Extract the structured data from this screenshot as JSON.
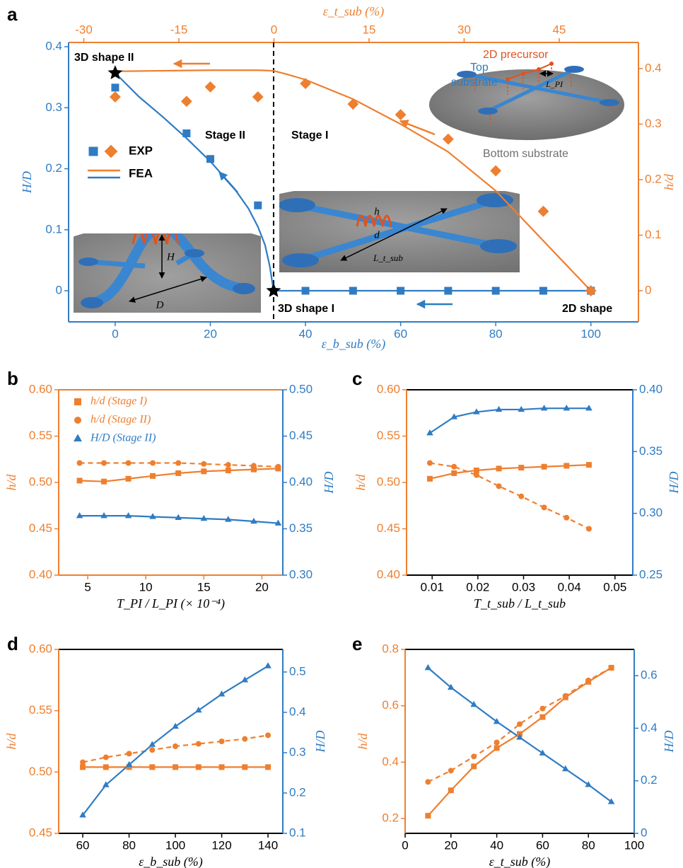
{
  "chart_data": [
    {
      "label": "a",
      "type": "line",
      "xlim": [
        -9.8,
        110
      ],
      "xticks": [
        0,
        20,
        40,
        60,
        80,
        100
      ],
      "x2lim": [
        -32.4,
        57.5
      ],
      "x2ticks": [
        -30,
        -15,
        0,
        15,
        30,
        45
      ],
      "ylim": [
        -0.051,
        0.407
      ],
      "yticks": [
        0,
        0.1,
        0.2,
        0.3,
        0.4
      ],
      "y2lim": [
        -0.056,
        0.447
      ],
      "y2ticks": [
        0,
        0.1,
        0.2,
        0.3,
        0.4
      ],
      "xlabel": "ε_b_sub (%)",
      "x2label": "ε_t_sub (%)",
      "ylabel": "H/D",
      "y2label": "h/d",
      "xcolor": "#2f7cc3",
      "topcolor": "#ee7f2f",
      "ycolor": "#2f7cc3",
      "y2color": "#ee7f2f",
      "legend": "upper left",
      "series": [
        {
          "name": "EXP",
          "color": "#2f7cc3",
          "marker": "square",
          "linestyle": "none",
          "x": [
            0,
            15,
            20,
            30,
            40,
            50,
            60,
            70,
            80,
            90,
            100
          ],
          "values": [
            0.333,
            0.258,
            0.216,
            0.14,
            0,
            0,
            0,
            0,
            0,
            0,
            0
          ]
        },
        {
          "name": "EXP",
          "color": "#ee7f2f",
          "marker": "diamond",
          "linestyle": "none",
          "axis": "y2",
          "x": [
            0,
            15,
            20,
            30,
            40,
            50,
            60,
            70,
            80,
            90,
            100
          ],
          "values": [
            0.349,
            0.341,
            0.367,
            0.349,
            0.373,
            0.336,
            0.317,
            0.273,
            0.216,
            0.143,
            0
          ]
        },
        {
          "name": "FEA",
          "color": "#ee7f2f",
          "linestyle": "solid",
          "axis": "y2",
          "x": [
            0,
            20,
            30,
            33.3,
            36,
            40,
            50,
            60,
            70,
            80,
            90,
            95,
            100
          ],
          "values": [
            0.395,
            0.397,
            0.397,
            0.396,
            0.39,
            0.38,
            0.345,
            0.3,
            0.25,
            0.18,
            0.09,
            0.045,
            0
          ]
        },
        {
          "name": "FEA",
          "color": "#2f7cc3",
          "linestyle": "solid",
          "x": [
            0,
            5,
            10,
            15,
            20,
            25,
            28,
            30,
            31.5,
            32.5,
            33.3,
            100
          ],
          "values": [
            0.357,
            0.318,
            0.285,
            0.25,
            0.212,
            0.168,
            0.135,
            0.105,
            0.075,
            0.04,
            0,
            0
          ]
        }
      ],
      "stars": {
        "x": [
          0,
          33.3
        ],
        "values": [
          0.357,
          0
        ]
      },
      "vline_x": 33.3,
      "annotations": [
        "3D shape II",
        "Stage II",
        "Stage I",
        "3D shape I",
        "2D shape",
        "2D precursor",
        "Top",
        "substrate",
        "Bottom substrate",
        "L_PI",
        "H",
        "D",
        "h",
        "d",
        "L_t_sub"
      ]
    },
    {
      "label": "b",
      "type": "line",
      "xlim": [
        2.5,
        21.8
      ],
      "xticks": [
        5,
        10,
        15,
        20
      ],
      "ylim": [
        0.4,
        0.6
      ],
      "yticks": [
        {
          "value": 0.4,
          "label": "0.40"
        },
        0.45,
        {
          "value": 0.5,
          "label": "0.50"
        },
        0.55,
        {
          "value": 0.6,
          "label": "0.60"
        }
      ],
      "y2lim": [
        0.3,
        0.5
      ],
      "y2ticks": [
        {
          "value": 0.3,
          "label": "0.30"
        },
        0.35,
        {
          "value": 0.4,
          "label": "0.40"
        },
        0.45,
        {
          "value": 0.5,
          "label": "0.50"
        }
      ],
      "xlabel": "T_PI / L_PI  (× 10⁻⁴)",
      "ylabel": "h/d",
      "y2label": "H/D",
      "xcolor": "#ee7f2f",
      "topcolor": "#ee7f2f",
      "ycolor": "#ee7f2f",
      "y2color": "#2f7cc3",
      "legend": "upper left",
      "x": [
        4.3,
        6.4,
        8.5,
        10.6,
        12.8,
        15,
        17.1,
        19.3,
        21.4
      ],
      "series": [
        {
          "name": "h/d (Stage I)",
          "color": "#ee7f2f",
          "marker": "square",
          "linestyle": "solid",
          "values": [
            0.502,
            0.501,
            0.504,
            0.507,
            0.51,
            0.512,
            0.513,
            0.514,
            0.515
          ]
        },
        {
          "name": "h/d (Stage II)",
          "color": "#ee7f2f",
          "marker": "circle",
          "linestyle": "dashed",
          "values": [
            0.521,
            0.521,
            0.521,
            0.521,
            0.521,
            0.52,
            0.519,
            0.518,
            0.517
          ]
        },
        {
          "name": "H/D (Stage II)",
          "color": "#2f7cc3",
          "marker": "triangle",
          "linestyle": "solid",
          "axis": "y2",
          "values": [
            0.364,
            0.364,
            0.364,
            0.363,
            0.362,
            0.361,
            0.36,
            0.358,
            0.356
          ]
        }
      ]
    },
    {
      "label": "c",
      "type": "line",
      "xlim": [
        0.0044,
        0.0539
      ],
      "xticks": [
        0.01,
        0.02,
        0.03,
        0.04,
        0.05
      ],
      "ylim": [
        0.4,
        0.6
      ],
      "yticks": [
        {
          "value": 0.4,
          "label": "0.40"
        },
        0.45,
        {
          "value": 0.5,
          "label": "0.50"
        },
        0.55,
        {
          "value": 0.6,
          "label": "0.60"
        }
      ],
      "y2lim": [
        0.25,
        0.4
      ],
      "y2ticks": [
        0.25,
        {
          "value": 0.3,
          "label": "0.30"
        },
        0.35,
        {
          "value": 0.4,
          "label": "0.40"
        }
      ],
      "xlabel": "T_t_sub / L_t_sub",
      "ylabel": "h/d",
      "y2label": "H/D",
      "xcolor": "#000000",
      "topcolor": "#000000",
      "ycolor": "#ee7f2f",
      "y2color": "#2f7cc3",
      "x": [
        0.0095,
        0.0148,
        0.0197,
        0.0246,
        0.0295,
        0.0345,
        0.0394,
        0.0443
      ],
      "series": [
        {
          "color": "#ee7f2f",
          "marker": "square",
          "linestyle": "solid",
          "values": [
            0.504,
            0.51,
            0.513,
            0.515,
            0.516,
            0.517,
            0.518,
            0.519
          ]
        },
        {
          "color": "#ee7f2f",
          "marker": "circle",
          "linestyle": "dashed",
          "values": [
            0.521,
            0.517,
            0.508,
            0.496,
            0.485,
            0.473,
            0.462,
            0.45
          ]
        },
        {
          "color": "#2f7cc3",
          "marker": "triangle",
          "linestyle": "solid",
          "axis": "y2",
          "values": [
            0.365,
            0.378,
            0.382,
            0.384,
            0.384,
            0.385,
            0.385,
            0.385
          ]
        }
      ]
    },
    {
      "label": "d",
      "type": "line",
      "xlim": [
        49.6,
        146.4
      ],
      "xticks": [
        60,
        80,
        100,
        120,
        140
      ],
      "ylim": [
        0.45,
        0.6
      ],
      "yticks": [
        0.45,
        {
          "value": 0.5,
          "label": "0.50"
        },
        0.55,
        {
          "value": 0.6,
          "label": "0.60"
        }
      ],
      "y2lim": [
        0.1,
        0.556
      ],
      "y2ticks": [
        0.1,
        0.2,
        0.3,
        0.4,
        0.5
      ],
      "xlabel": "ε_b_sub (%)",
      "ylabel": "h/d",
      "y2label": "H/D",
      "xcolor": "#000000",
      "topcolor": "#000000",
      "ycolor": "#ee7f2f",
      "y2color": "#2f7cc3",
      "x": [
        60,
        70,
        80,
        90,
        100,
        110,
        120,
        130,
        140
      ],
      "series": [
        {
          "color": "#ee7f2f",
          "marker": "square",
          "linestyle": "solid",
          "values": [
            0.504,
            0.504,
            0.504,
            0.504,
            0.504,
            0.504,
            0.504,
            0.504,
            0.504
          ]
        },
        {
          "color": "#ee7f2f",
          "marker": "circle",
          "linestyle": "dashed",
          "values": [
            0.508,
            0.512,
            0.515,
            0.518,
            0.521,
            0.523,
            0.525,
            0.527,
            0.53
          ]
        },
        {
          "color": "#2f7cc3",
          "marker": "triangle",
          "linestyle": "solid",
          "axis": "y2",
          "values": [
            0.145,
            0.22,
            0.27,
            0.32,
            0.365,
            0.405,
            0.445,
            0.48,
            0.515
          ]
        }
      ]
    },
    {
      "label": "e",
      "type": "line",
      "xlim": [
        0,
        100
      ],
      "xticks": [
        0,
        20,
        40,
        60,
        80,
        100
      ],
      "ylim": [
        0.1475,
        0.8
      ],
      "yticks": [
        0.2,
        0.4,
        0.6,
        0.8
      ],
      "y2lim": [
        0,
        0.7
      ],
      "y2ticks": [
        0,
        0.2,
        0.4,
        0.6
      ],
      "xlabel": "ε_t_sub (%)",
      "ylabel": "h/d",
      "y2label": "H/D",
      "xcolor": "#000000",
      "topcolor": "#000000",
      "ycolor": "#ee7f2f",
      "y2color": "#2f7cc3",
      "x": [
        10,
        20,
        30,
        40,
        50,
        60,
        70,
        80,
        90
      ],
      "series": [
        {
          "color": "#ee7f2f",
          "marker": "square",
          "linestyle": "solid",
          "values": [
            0.21,
            0.3,
            0.385,
            0.45,
            0.5,
            0.56,
            0.63,
            0.685,
            0.735
          ]
        },
        {
          "color": "#ee7f2f",
          "marker": "circle",
          "linestyle": "dashed",
          "values": [
            0.33,
            0.37,
            0.42,
            0.47,
            0.535,
            0.59,
            0.635,
            0.69,
            0.735
          ]
        },
        {
          "color": "#2f7cc3",
          "marker": "triangle",
          "linestyle": "solid",
          "axis": "y2",
          "values": [
            0.63,
            0.555,
            0.49,
            0.425,
            0.365,
            0.305,
            0.245,
            0.185,
            0.12
          ]
        }
      ]
    }
  ]
}
